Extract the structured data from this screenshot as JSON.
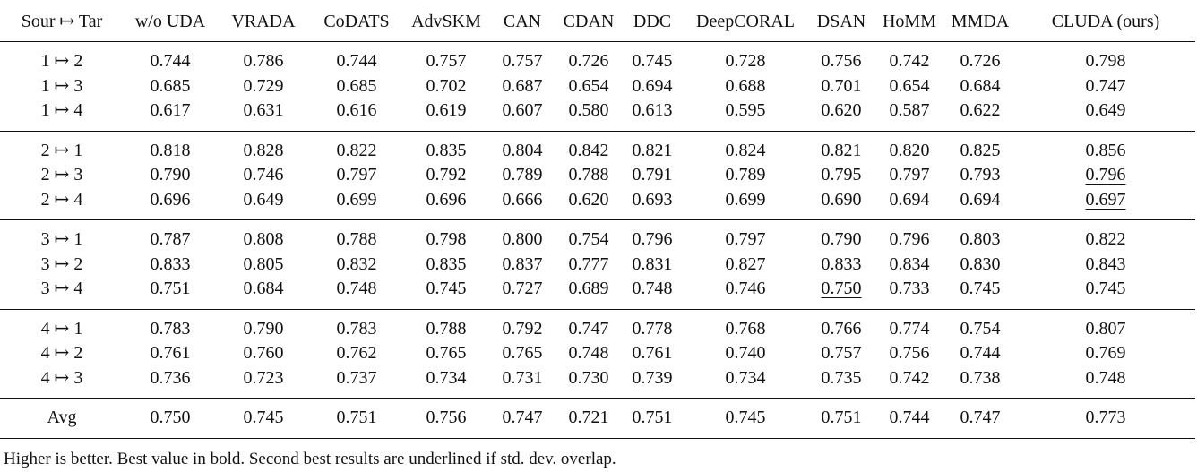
{
  "table": {
    "columns": [
      "Sour ↦ Tar",
      "w/o UDA",
      "VRADA",
      "CoDATS",
      "AdvSKM",
      "CAN",
      "CDAN",
      "DDC",
      "DeepCORAL",
      "DSAN",
      "HoMM",
      "MMDA",
      "CLUDA (ours)"
    ],
    "groups": [
      [
        {
          "pair": "1 ↦ 2",
          "values": [
            "0.744",
            "0.786",
            "0.744",
            "0.757",
            "0.757",
            "0.726",
            "0.745",
            "0.728",
            "0.756",
            "0.742",
            "0.726",
            "0.798"
          ],
          "bold": [
            11
          ],
          "underline": []
        },
        {
          "pair": "1 ↦ 3",
          "values": [
            "0.685",
            "0.729",
            "0.685",
            "0.702",
            "0.687",
            "0.654",
            "0.694",
            "0.688",
            "0.701",
            "0.654",
            "0.684",
            "0.747"
          ],
          "bold": [
            11
          ],
          "underline": []
        },
        {
          "pair": "1 ↦ 4",
          "values": [
            "0.617",
            "0.631",
            "0.616",
            "0.619",
            "0.607",
            "0.580",
            "0.613",
            "0.595",
            "0.620",
            "0.587",
            "0.622",
            "0.649"
          ],
          "bold": [
            11
          ],
          "underline": []
        }
      ],
      [
        {
          "pair": "2 ↦ 1",
          "values": [
            "0.818",
            "0.828",
            "0.822",
            "0.835",
            "0.804",
            "0.842",
            "0.821",
            "0.824",
            "0.821",
            "0.820",
            "0.825",
            "0.856"
          ],
          "bold": [
            11
          ],
          "underline": []
        },
        {
          "pair": "2 ↦ 3",
          "values": [
            "0.790",
            "0.746",
            "0.797",
            "0.792",
            "0.789",
            "0.788",
            "0.791",
            "0.789",
            "0.795",
            "0.797",
            "0.793",
            "0.796"
          ],
          "bold": [
            2,
            9
          ],
          "underline": [
            11
          ]
        },
        {
          "pair": "2 ↦ 4",
          "values": [
            "0.696",
            "0.649",
            "0.699",
            "0.696",
            "0.666",
            "0.620",
            "0.693",
            "0.699",
            "0.690",
            "0.694",
            "0.694",
            "0.697"
          ],
          "bold": [
            2,
            7
          ],
          "underline": [
            11
          ]
        }
      ],
      [
        {
          "pair": "3 ↦ 1",
          "values": [
            "0.787",
            "0.808",
            "0.788",
            "0.798",
            "0.800",
            "0.754",
            "0.796",
            "0.797",
            "0.790",
            "0.796",
            "0.803",
            "0.822"
          ],
          "bold": [
            11
          ],
          "underline": []
        },
        {
          "pair": "3 ↦ 2",
          "values": [
            "0.833",
            "0.805",
            "0.832",
            "0.835",
            "0.837",
            "0.777",
            "0.831",
            "0.827",
            "0.833",
            "0.834",
            "0.830",
            "0.843"
          ],
          "bold": [
            11
          ],
          "underline": []
        },
        {
          "pair": "3 ↦ 4",
          "values": [
            "0.751",
            "0.684",
            "0.748",
            "0.745",
            "0.727",
            "0.689",
            "0.748",
            "0.746",
            "0.750",
            "0.733",
            "0.745",
            "0.745"
          ],
          "bold": [
            0
          ],
          "underline": [
            8
          ]
        }
      ],
      [
        {
          "pair": "4 ↦ 1",
          "values": [
            "0.783",
            "0.790",
            "0.783",
            "0.788",
            "0.792",
            "0.747",
            "0.778",
            "0.768",
            "0.766",
            "0.774",
            "0.754",
            "0.807"
          ],
          "bold": [
            11
          ],
          "underline": []
        },
        {
          "pair": "4 ↦ 2",
          "values": [
            "0.761",
            "0.760",
            "0.762",
            "0.765",
            "0.765",
            "0.748",
            "0.761",
            "0.740",
            "0.757",
            "0.756",
            "0.744",
            "0.769"
          ],
          "bold": [
            11
          ],
          "underline": []
        },
        {
          "pair": "4 ↦ 3",
          "values": [
            "0.736",
            "0.723",
            "0.737",
            "0.734",
            "0.731",
            "0.730",
            "0.739",
            "0.734",
            "0.735",
            "0.742",
            "0.738",
            "0.748"
          ],
          "bold": [
            11
          ],
          "underline": []
        }
      ]
    ],
    "avg": {
      "pair": "Avg",
      "values": [
        "0.750",
        "0.745",
        "0.751",
        "0.756",
        "0.747",
        "0.721",
        "0.751",
        "0.745",
        "0.751",
        "0.744",
        "0.747",
        "0.773"
      ],
      "bold": [
        11
      ],
      "underline": []
    }
  },
  "caption": "Higher is better. Best value in bold. Second best results are underlined if std. dev. overlap."
}
